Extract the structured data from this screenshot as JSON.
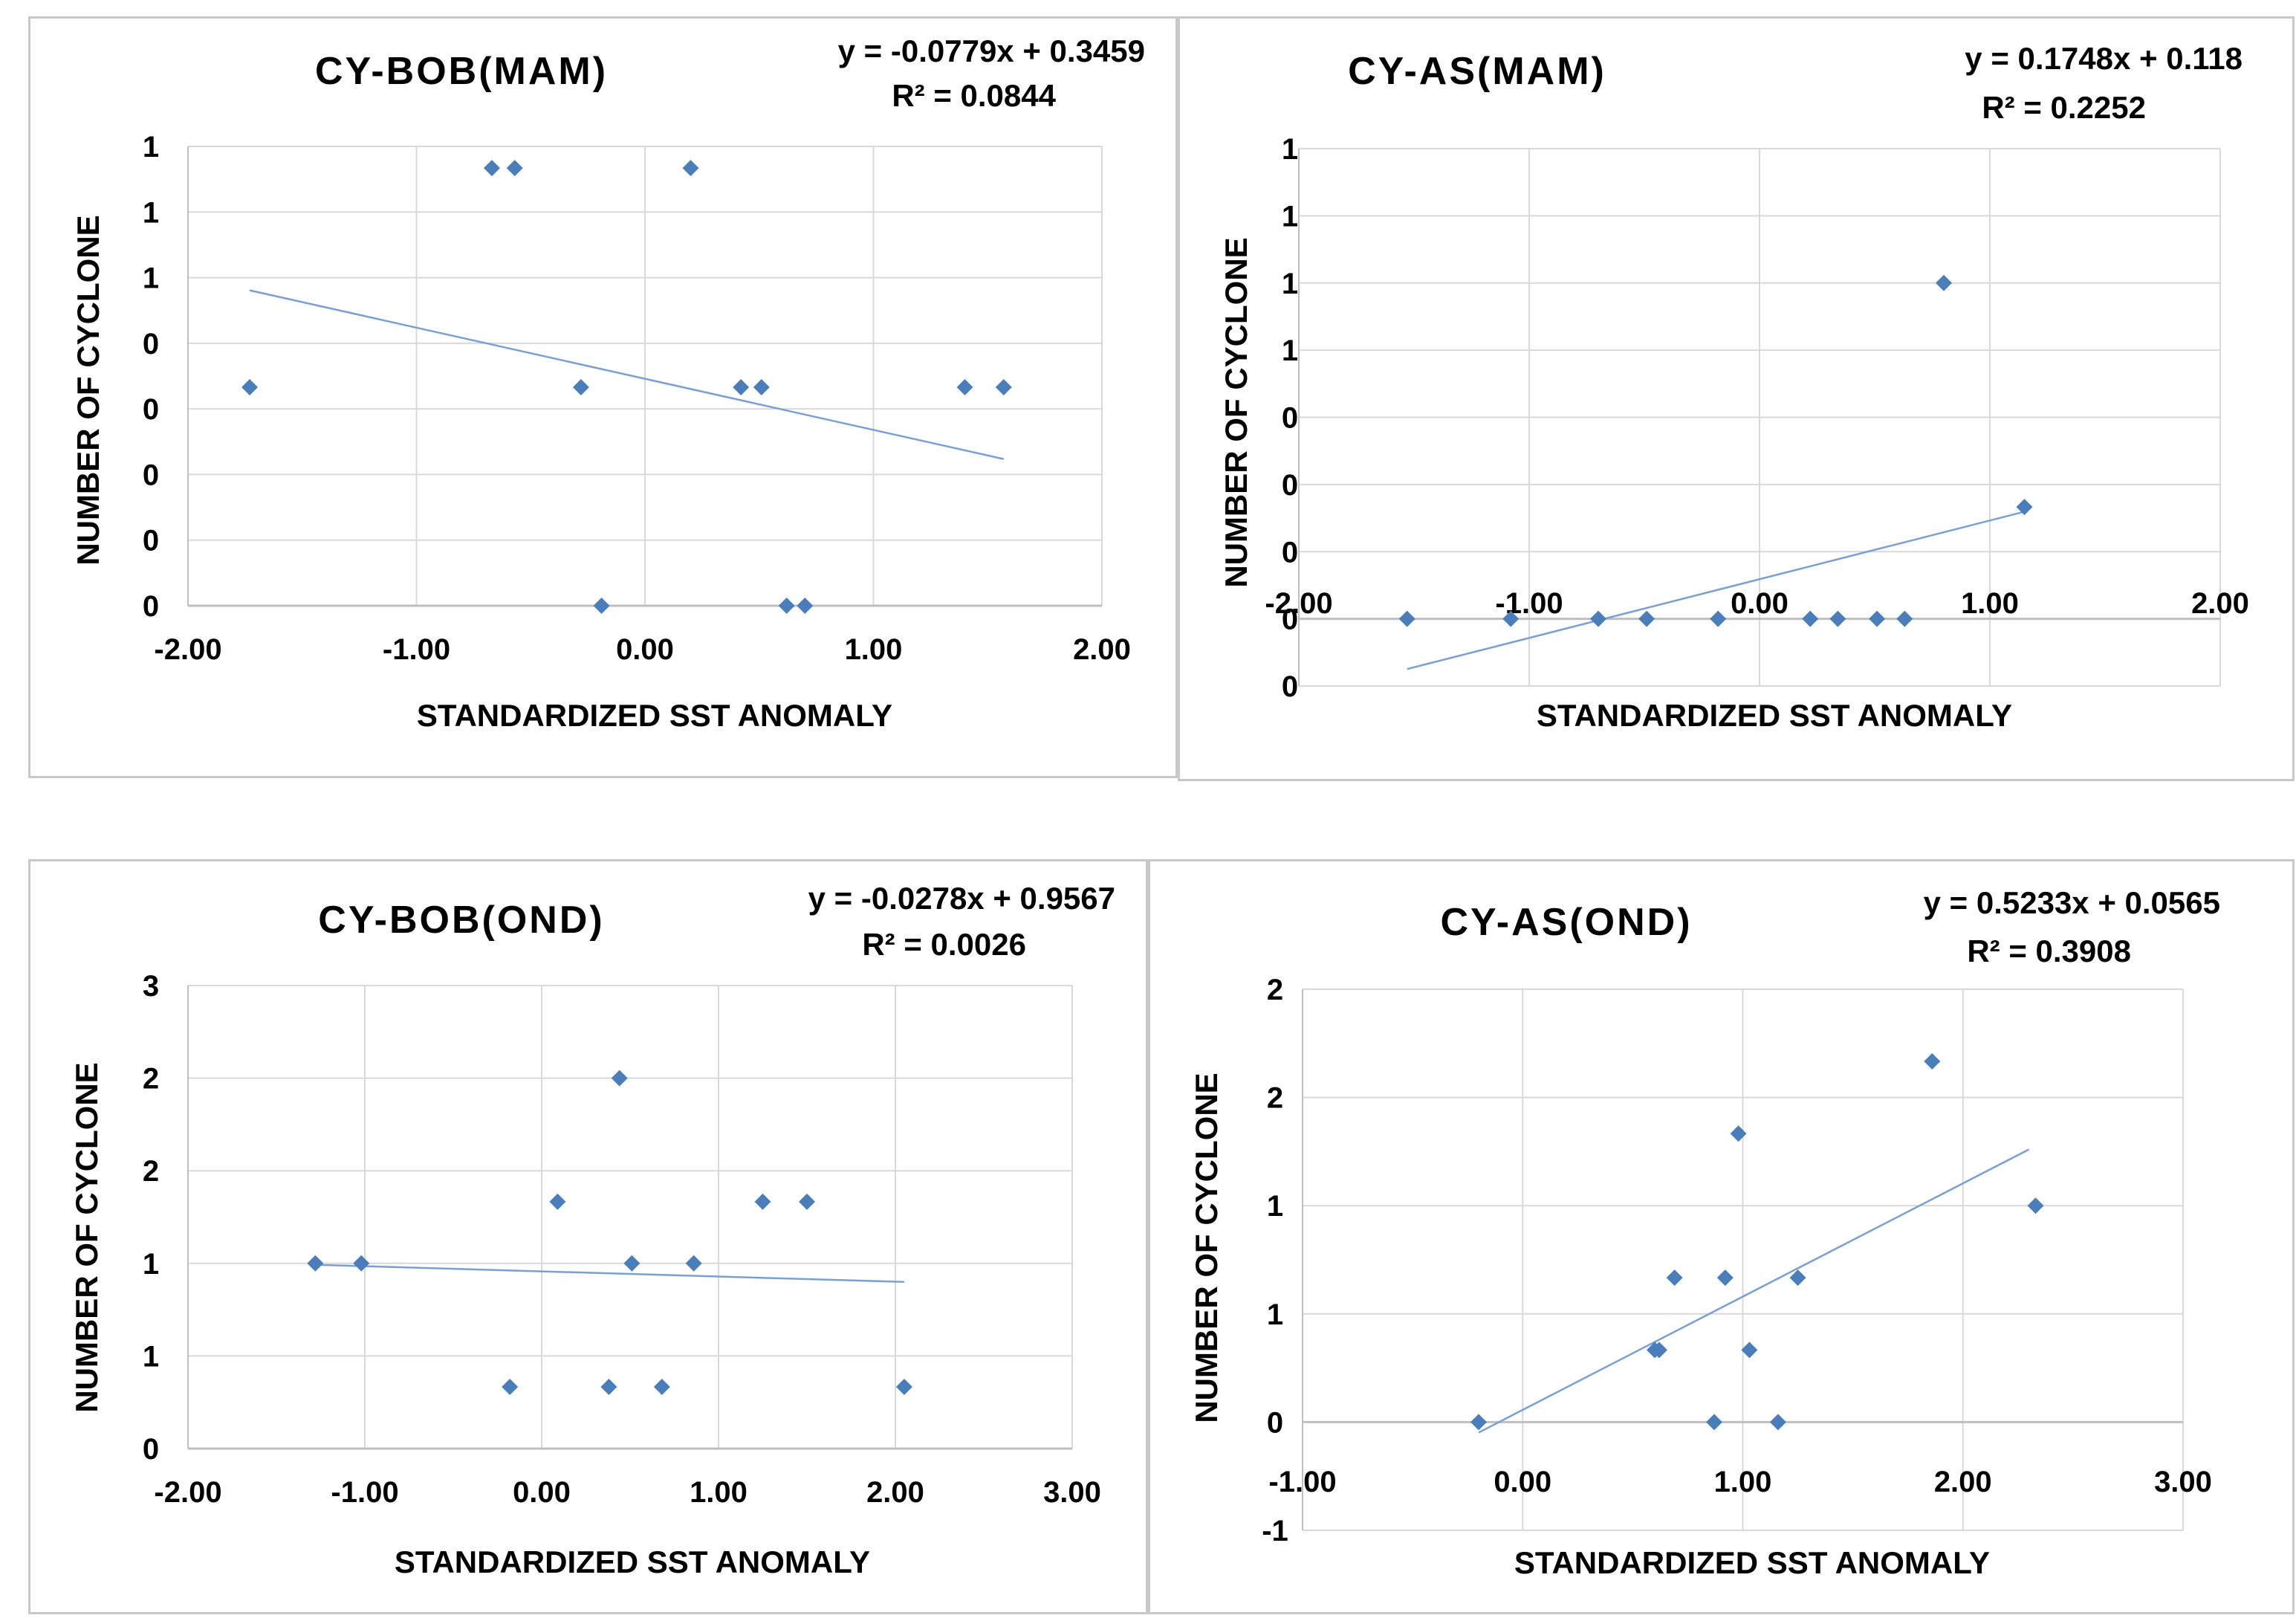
{
  "chart_data": [
    {
      "id": "bob_mam",
      "type": "scatter",
      "title": "CY-BOB(MAM)",
      "xlabel": "STANDARDIZED SST ANOMALY",
      "ylabel": "NUMBER OF CYCLONE",
      "equation": "y = -0.0779x + 0.3459",
      "r2": "R² = 0.0844",
      "xlim": [
        -2,
        2
      ],
      "ylim": [
        0,
        0.7
      ],
      "x_ticks": [
        -2,
        -1,
        0,
        1,
        2
      ],
      "x_tick_labels": [
        "-2.00",
        "-1.00",
        "0.00",
        "1.00",
        "2.00"
      ],
      "y_ticks": [
        0,
        0.1,
        0.2,
        0.3,
        0.4,
        0.5,
        0.6,
        0.7
      ],
      "y_tick_labels": [
        "0",
        "0",
        "0",
        "0",
        "0",
        "1",
        "1",
        "1"
      ],
      "trend": {
        "slope": -0.0779,
        "intercept": 0.3459,
        "x_range": [
          -1.73,
          1.57
        ]
      },
      "points": [
        [
          -1.73,
          0.333
        ],
        [
          -0.67,
          0.667
        ],
        [
          -0.57,
          0.667
        ],
        [
          0.2,
          0.667
        ],
        [
          -0.28,
          0.333
        ],
        [
          0.42,
          0.333
        ],
        [
          0.51,
          0.333
        ],
        [
          1.4,
          0.333
        ],
        [
          1.57,
          0.333
        ],
        [
          -0.19,
          0
        ],
        [
          0.62,
          0
        ],
        [
          0.7,
          0
        ]
      ],
      "marker_color": "#4a7ebb",
      "line_color": "#7a9fd4"
    },
    {
      "id": "as_mam",
      "type": "scatter",
      "title": "CY-AS(MAM)",
      "xlabel": "STANDARDIZED SST ANOMALY",
      "ylabel": "NUMBER OF CYCLONE",
      "equation": "y = 0.1748x + 0.118",
      "r2": "R² = 0.2252",
      "xlim": [
        -2,
        2
      ],
      "ylim": [
        -0.2,
        1.4
      ],
      "x_axis_at": 0,
      "x_ticks": [
        -2,
        -1,
        0,
        1,
        2
      ],
      "x_tick_labels": [
        "-2.00",
        "-1.00",
        "0.00",
        "1.00",
        "2.00"
      ],
      "y_ticks": [
        -0.2,
        0,
        0.2,
        0.4,
        0.6,
        0.8,
        1.0,
        1.2,
        1.4
      ],
      "y_tick_labels": [
        "0",
        "0",
        "0",
        "0",
        "0",
        "1",
        "1",
        "1",
        "1"
      ],
      "trend": {
        "slope": 0.1748,
        "intercept": 0.118,
        "x_range": [
          -1.53,
          1.15
        ]
      },
      "points": [
        [
          -1.53,
          0
        ],
        [
          -1.08,
          0
        ],
        [
          -0.7,
          0
        ],
        [
          -0.49,
          0
        ],
        [
          -0.18,
          0
        ],
        [
          0.22,
          0
        ],
        [
          0.34,
          0
        ],
        [
          0.51,
          0
        ],
        [
          0.63,
          0
        ],
        [
          0.8,
          1.0
        ],
        [
          1.15,
          0.333
        ]
      ],
      "marker_color": "#4a7ebb",
      "line_color": "#7a9fd4"
    },
    {
      "id": "bob_ond",
      "type": "scatter",
      "title": "CY-BOB(OND)",
      "xlabel": "STANDARDIZED SST ANOMALY",
      "ylabel": "NUMBER OF CYCLONE",
      "equation": "y = -0.0278x + 0.9567",
      "r2": "R² = 0.0026",
      "xlim": [
        -2,
        3
      ],
      "ylim": [
        0,
        2.5
      ],
      "x_ticks": [
        -2,
        -1,
        0,
        1,
        2,
        3
      ],
      "x_tick_labels": [
        "-2.00",
        "-1.00",
        "0.00",
        "1.00",
        "2.00",
        "3.00"
      ],
      "y_ticks": [
        0,
        0.5,
        1.0,
        1.5,
        2.0,
        2.5
      ],
      "y_tick_labels": [
        "0",
        "1",
        "1",
        "2",
        "2",
        "3"
      ],
      "trend": {
        "slope": -0.0278,
        "intercept": 0.9567,
        "x_range": [
          -1.28,
          2.05
        ]
      },
      "points": [
        [
          -1.28,
          1
        ],
        [
          -1.02,
          1
        ],
        [
          -0.18,
          0.333
        ],
        [
          0.09,
          1.333
        ],
        [
          0.38,
          0.333
        ],
        [
          0.44,
          2
        ],
        [
          0.51,
          1
        ],
        [
          0.68,
          0.333
        ],
        [
          0.86,
          1
        ],
        [
          1.25,
          1.333
        ],
        [
          1.5,
          1.333
        ],
        [
          2.05,
          0.333
        ]
      ],
      "marker_color": "#4a7ebb",
      "line_color": "#7a9fd4"
    },
    {
      "id": "as_ond",
      "type": "scatter",
      "title": "CY-AS(OND)",
      "xlabel": "STANDARDIZED SST ANOMALY",
      "ylabel": "NUMBER OF CYCLONE",
      "equation": "y = 0.5233x + 0.0565",
      "r2": "R² = 0.3908",
      "xlim": [
        -1,
        3
      ],
      "ylim": [
        -0.5,
        2
      ],
      "x_axis_at": 0,
      "x_ticks": [
        -1,
        0,
        1,
        2,
        3
      ],
      "x_tick_labels": [
        "-1.00",
        "0.00",
        "1.00",
        "2.00",
        "3.00"
      ],
      "y_ticks": [
        -0.5,
        0,
        0.5,
        1.0,
        1.5,
        2.0
      ],
      "y_tick_labels": [
        "-1",
        "0",
        "1",
        "1",
        "2",
        "2"
      ],
      "trend": {
        "slope": 0.5233,
        "intercept": 0.0565,
        "x_range": [
          -0.2,
          2.3
        ]
      },
      "points": [
        [
          -0.2,
          0
        ],
        [
          0.6,
          0.333
        ],
        [
          0.62,
          0.333
        ],
        [
          0.69,
          0.667
        ],
        [
          0.87,
          0
        ],
        [
          0.92,
          0.667
        ],
        [
          0.98,
          1.333
        ],
        [
          1.03,
          0.333
        ],
        [
          1.16,
          0
        ],
        [
          1.25,
          0.667
        ],
        [
          1.86,
          1.667
        ],
        [
          2.33,
          1
        ]
      ],
      "marker_color": "#4a7ebb",
      "line_color": "#7a9fd4"
    }
  ]
}
